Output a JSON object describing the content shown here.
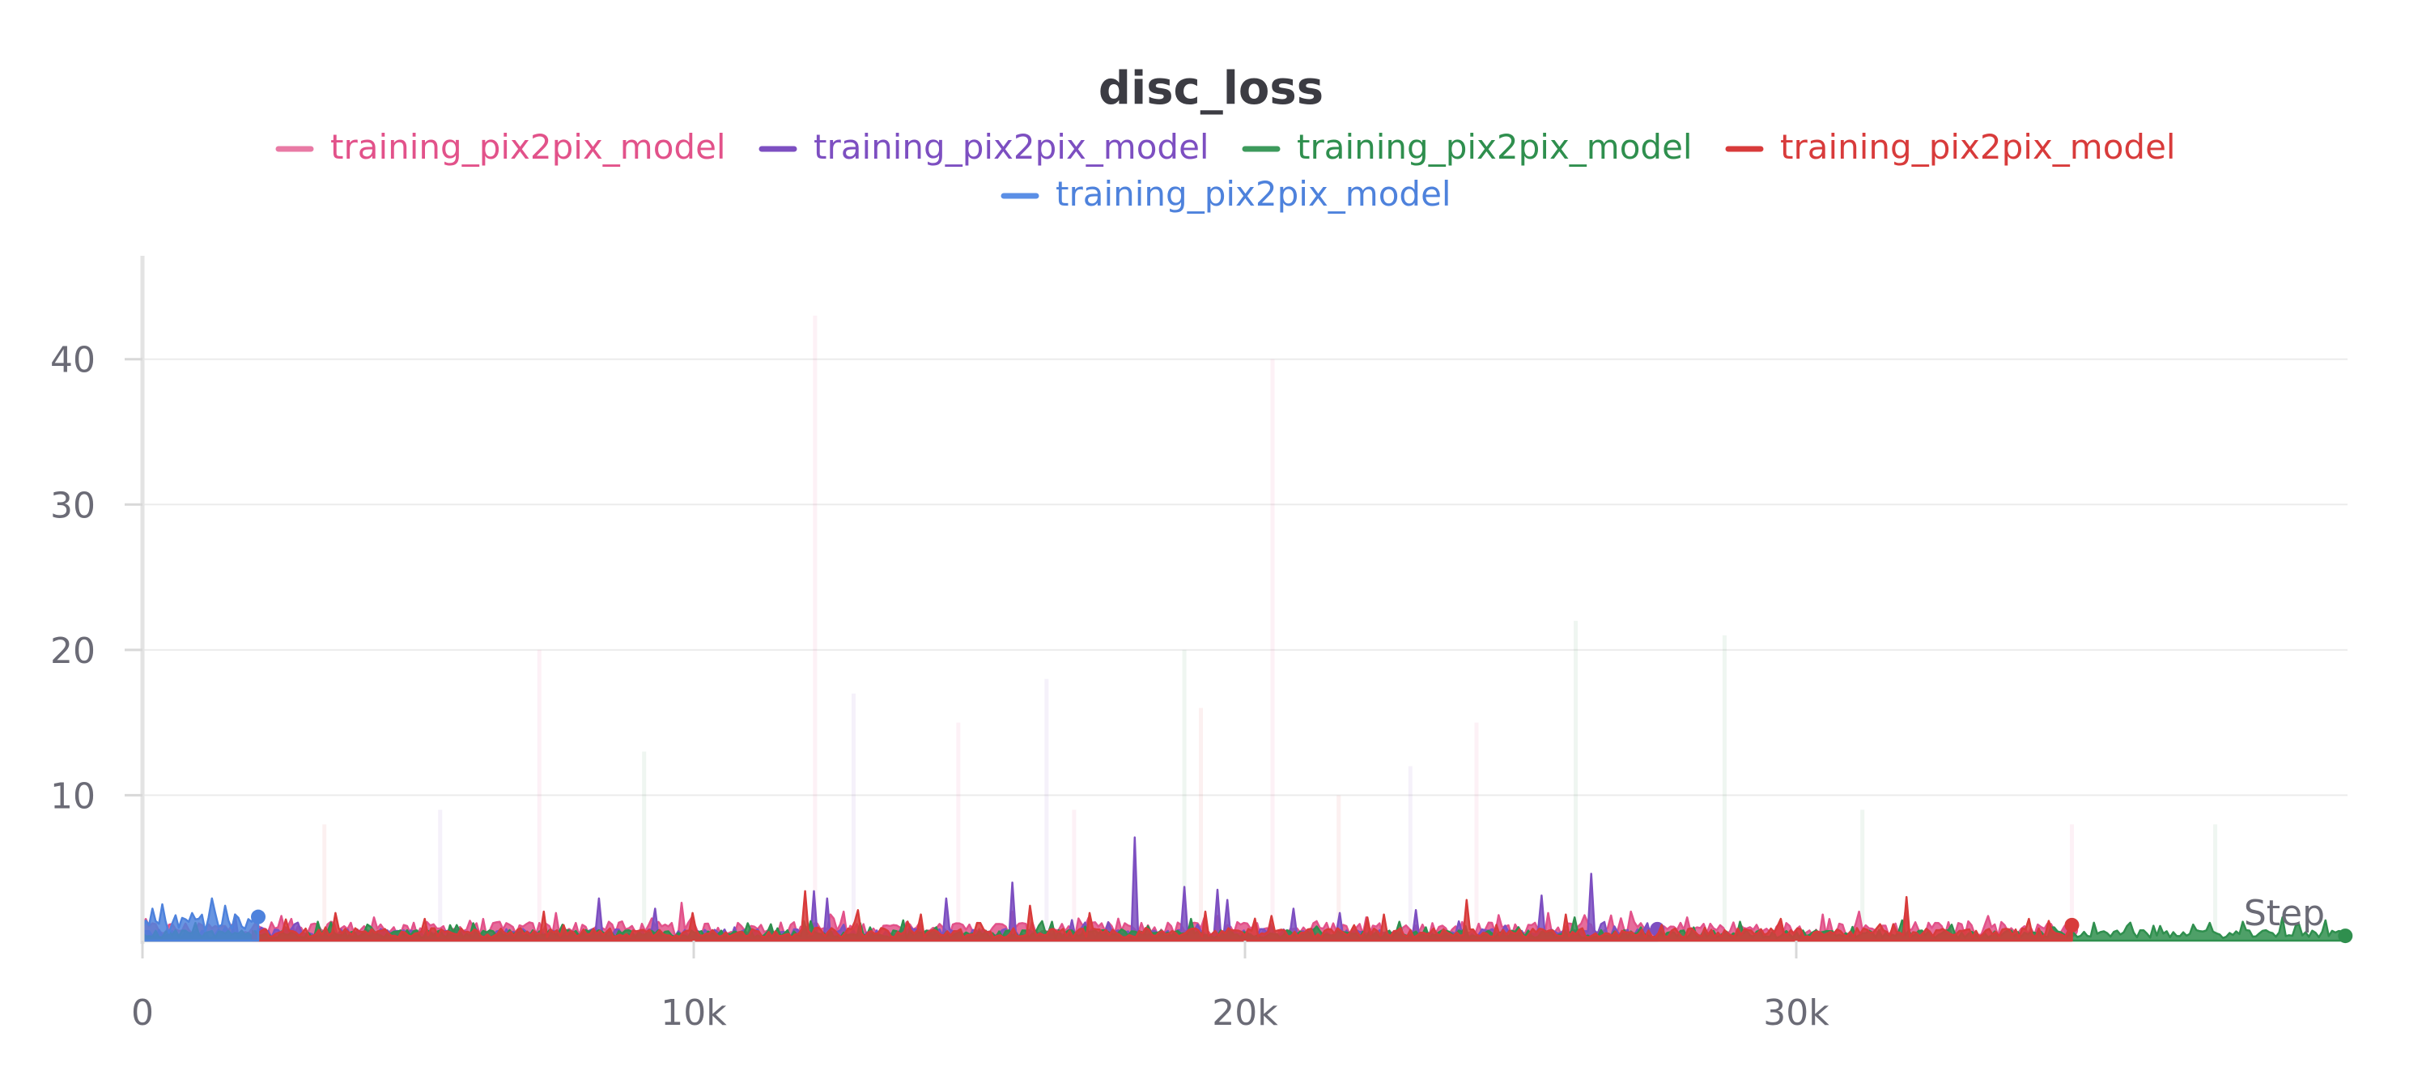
{
  "chart_data": {
    "type": "line",
    "title": "disc_loss",
    "xlabel": "Step",
    "ylabel": "",
    "xlim": [
      0,
      40000
    ],
    "ylim": [
      0,
      47
    ],
    "x_ticks": [
      0,
      10000,
      20000,
      30000
    ],
    "x_tick_labels": [
      "0",
      "10k",
      "20k",
      "30k"
    ],
    "y_ticks": [
      10,
      20,
      30,
      40
    ],
    "y_tick_labels": [
      "10",
      "20",
      "30",
      "40"
    ],
    "grid": true,
    "legend": "top-center",
    "series": [
      {
        "name": "training_pix2pix_model",
        "color": "#e2528a",
        "legend_color": "#e97aa5",
        "x_range": [
          0,
          35000
        ],
        "baseline": 0.9,
        "spikes": [
          [
            2500,
            1.7
          ],
          [
            4200,
            1.6
          ],
          [
            7500,
            1.9
          ],
          [
            9800,
            2.6
          ],
          [
            12500,
            1.8
          ],
          [
            15800,
            2.0
          ],
          [
            19500,
            1.7
          ],
          [
            22200,
            1.6
          ],
          [
            25500,
            1.9
          ],
          [
            27000,
            2.0
          ],
          [
            28000,
            1.6
          ],
          [
            30500,
            1.8
          ],
          [
            32000,
            2.0
          ],
          [
            33500,
            1.7
          ]
        ]
      },
      {
        "name": "training_pix2pix_model",
        "color": "#7d4fc1",
        "legend_color": "#7d4fc1",
        "x_range": [
          0,
          27500
        ],
        "baseline": 0.55,
        "spikes": [
          [
            1700,
            1.8
          ],
          [
            8300,
            2.9
          ],
          [
            9300,
            2.2
          ],
          [
            12200,
            3.4
          ],
          [
            12400,
            2.9
          ],
          [
            14600,
            2.9
          ],
          [
            15800,
            4.0
          ],
          [
            18000,
            7.1
          ],
          [
            18900,
            3.7
          ],
          [
            19500,
            3.5
          ],
          [
            19700,
            2.8
          ],
          [
            20900,
            2.2
          ],
          [
            21700,
            1.9
          ],
          [
            23100,
            2.1
          ],
          [
            25400,
            3.1
          ],
          [
            26300,
            4.6
          ],
          [
            27300,
            1.2
          ]
        ]
      },
      {
        "name": "training_pix2pix_model",
        "color": "#2f8f4e",
        "legend_color": "#3d9a5c",
        "x_range": [
          0,
          40000
        ],
        "baseline": 0.5,
        "spikes": [
          [
            3200,
            1.3
          ],
          [
            6000,
            1.2
          ],
          [
            11000,
            1.2
          ],
          [
            13800,
            1.4
          ],
          [
            16500,
            1.3
          ],
          [
            19000,
            1.5
          ],
          [
            22800,
            1.3
          ],
          [
            26000,
            1.6
          ],
          [
            29000,
            1.3
          ],
          [
            31900,
            1.4
          ],
          [
            34600,
            0.9
          ],
          [
            36000,
            1.0
          ],
          [
            37200,
            1.1
          ],
          [
            38100,
            1.3
          ],
          [
            38800,
            1.6
          ],
          [
            39600,
            1.4
          ]
        ]
      },
      {
        "name": "training_pix2pix_model",
        "color": "#d83b3b",
        "legend_color": "#d83b3b",
        "x_range": [
          2000,
          35000
        ],
        "baseline": 0.6,
        "spikes": [
          [
            3500,
            1.9
          ],
          [
            5100,
            1.5
          ],
          [
            7300,
            2.0
          ],
          [
            10000,
            1.9
          ],
          [
            12000,
            3.4
          ],
          [
            13000,
            2.1
          ],
          [
            14100,
            1.8
          ],
          [
            16100,
            2.4
          ],
          [
            17200,
            1.9
          ],
          [
            19300,
            2.0
          ],
          [
            20500,
            1.7
          ],
          [
            22500,
            1.8
          ],
          [
            24000,
            2.8
          ],
          [
            25800,
            1.8
          ],
          [
            29700,
            1.5
          ],
          [
            32000,
            3.0
          ],
          [
            34200,
            1.5
          ]
        ]
      },
      {
        "name": "training_pix2pix_model",
        "color": "#4e82dc",
        "legend_color": "#5b8fe6",
        "x_range": [
          0,
          2100
        ],
        "baseline": 1.3,
        "spikes": [
          [
            200,
            2.2
          ],
          [
            350,
            2.5
          ],
          [
            900,
            1.9
          ],
          [
            1250,
            2.9
          ],
          [
            1500,
            2.4
          ],
          [
            1950,
            2.5
          ]
        ]
      }
    ]
  }
}
